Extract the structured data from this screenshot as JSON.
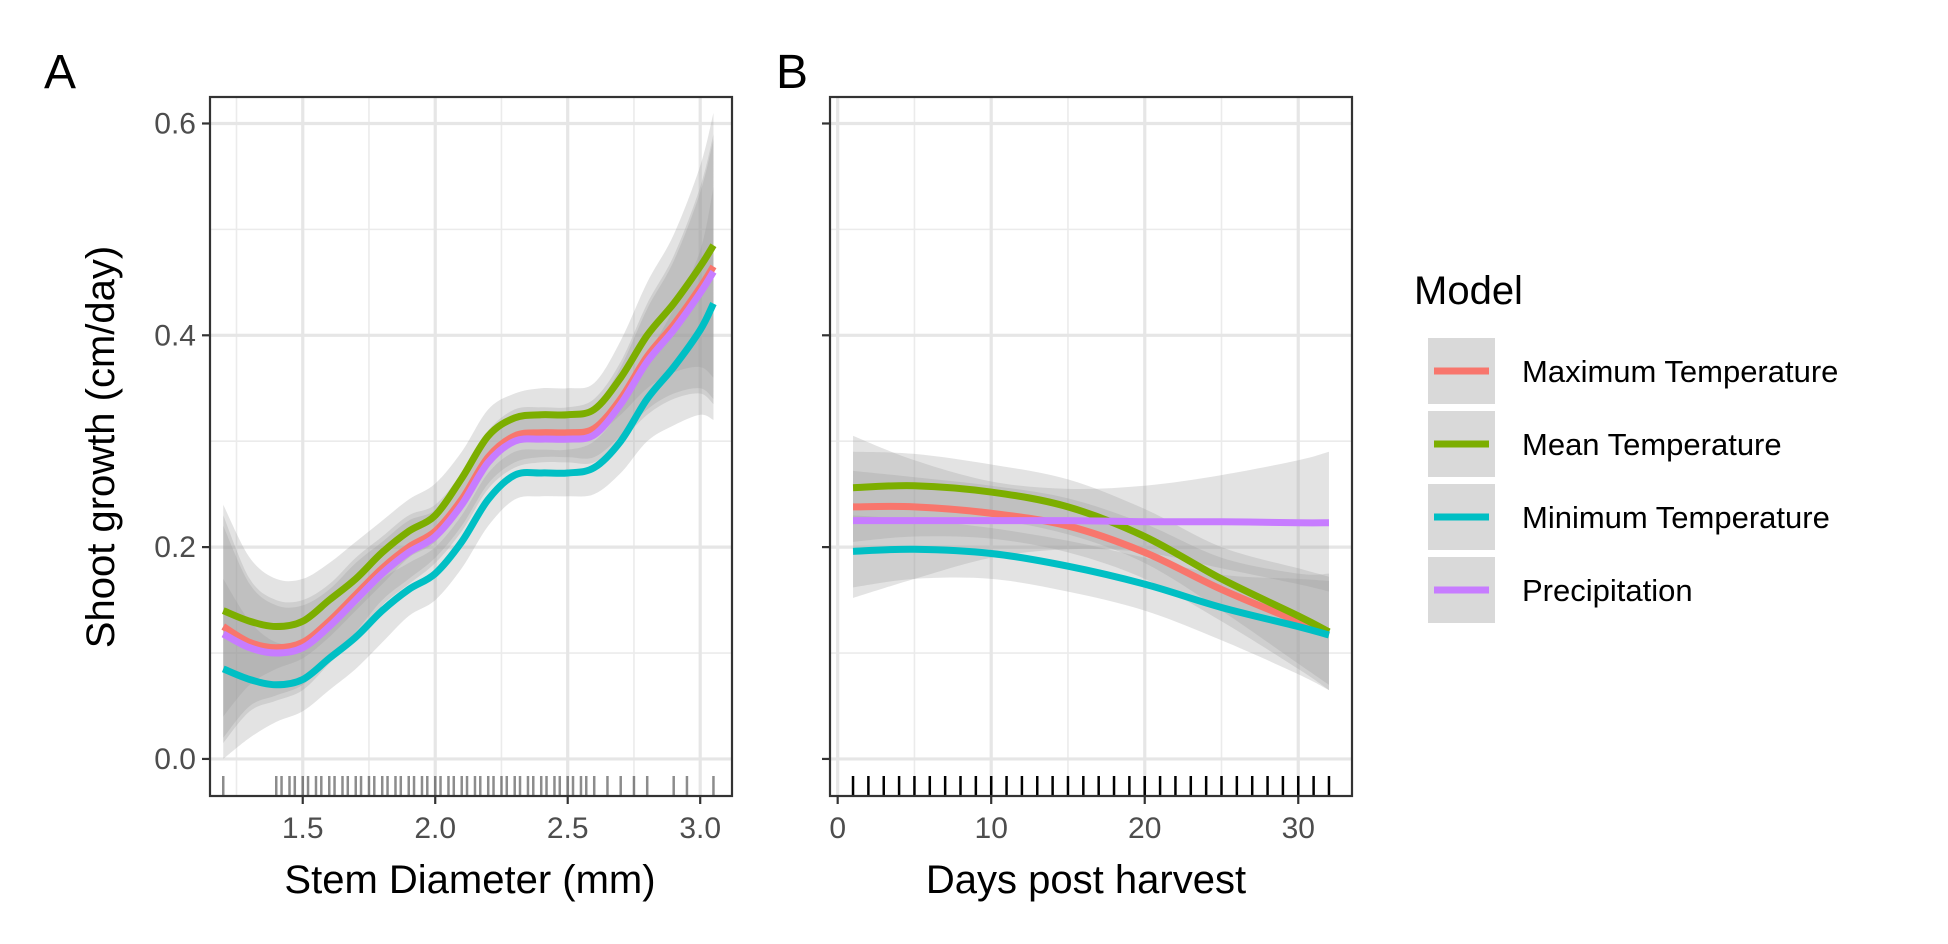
{
  "chart_data": [
    {
      "panel": "A",
      "type": "line",
      "xlabel": "Stem Diameter (mm)",
      "ylabel": "Shoot growth (cm/day)",
      "xlim": [
        1.15,
        3.12
      ],
      "ylim": [
        -0.035,
        0.625
      ],
      "xticks": [
        1.5,
        2.0,
        2.5,
        3.0
      ],
      "xtick_labels": [
        "1.5",
        "2.0",
        "2.5",
        "3.0"
      ],
      "yticks": [
        0.0,
        0.2,
        0.4,
        0.6
      ],
      "ytick_labels": [
        "0.0",
        "0.2",
        "0.4",
        "0.6"
      ],
      "grid": true,
      "x": [
        1.2,
        1.3,
        1.4,
        1.5,
        1.6,
        1.7,
        1.8,
        1.9,
        2.0,
        2.1,
        2.2,
        2.3,
        2.4,
        2.5,
        2.6,
        2.7,
        2.8,
        2.9,
        3.0,
        3.05
      ],
      "series": [
        {
          "name": "Maximum Temperature",
          "color": "#F8766D",
          "values": [
            0.125,
            0.11,
            0.105,
            0.11,
            0.13,
            0.155,
            0.18,
            0.2,
            0.215,
            0.245,
            0.285,
            0.305,
            0.308,
            0.308,
            0.312,
            0.34,
            0.38,
            0.41,
            0.445,
            0.465
          ],
          "lower": [
            0.02,
            0.05,
            0.06,
            0.07,
            0.095,
            0.12,
            0.15,
            0.17,
            0.19,
            0.22,
            0.26,
            0.28,
            0.285,
            0.285,
            0.285,
            0.305,
            0.33,
            0.345,
            0.35,
            0.34
          ],
          "upper": [
            0.23,
            0.17,
            0.15,
            0.15,
            0.165,
            0.19,
            0.21,
            0.23,
            0.24,
            0.27,
            0.31,
            0.33,
            0.332,
            0.332,
            0.34,
            0.375,
            0.43,
            0.475,
            0.54,
            0.59
          ]
        },
        {
          "name": "Mean Temperature",
          "color": "#7CAE00",
          "values": [
            0.14,
            0.13,
            0.125,
            0.13,
            0.15,
            0.17,
            0.195,
            0.215,
            0.23,
            0.265,
            0.305,
            0.322,
            0.325,
            0.325,
            0.33,
            0.36,
            0.4,
            0.43,
            0.465,
            0.485
          ],
          "lower": [
            0.04,
            0.07,
            0.085,
            0.095,
            0.115,
            0.14,
            0.165,
            0.19,
            0.205,
            0.24,
            0.28,
            0.3,
            0.3,
            0.3,
            0.305,
            0.325,
            0.35,
            0.365,
            0.37,
            0.36
          ],
          "upper": [
            0.24,
            0.19,
            0.17,
            0.17,
            0.185,
            0.205,
            0.225,
            0.245,
            0.26,
            0.29,
            0.33,
            0.345,
            0.35,
            0.35,
            0.355,
            0.395,
            0.45,
            0.495,
            0.56,
            0.61
          ]
        },
        {
          "name": "Minimum Temperature",
          "color": "#00BFC4",
          "values": [
            0.085,
            0.075,
            0.07,
            0.075,
            0.095,
            0.115,
            0.14,
            0.16,
            0.175,
            0.205,
            0.245,
            0.268,
            0.27,
            0.27,
            0.275,
            0.3,
            0.34,
            0.37,
            0.405,
            0.43
          ],
          "lower": [
            0.0,
            0.02,
            0.035,
            0.045,
            0.065,
            0.085,
            0.11,
            0.135,
            0.15,
            0.18,
            0.22,
            0.245,
            0.248,
            0.248,
            0.25,
            0.27,
            0.3,
            0.315,
            0.325,
            0.32
          ],
          "upper": [
            0.17,
            0.13,
            0.11,
            0.11,
            0.125,
            0.145,
            0.17,
            0.185,
            0.2,
            0.23,
            0.27,
            0.29,
            0.292,
            0.292,
            0.3,
            0.33,
            0.38,
            0.425,
            0.48,
            0.54
          ]
        },
        {
          "name": "Precipitation",
          "color": "#C77CFF",
          "values": [
            0.118,
            0.105,
            0.1,
            0.105,
            0.125,
            0.15,
            0.175,
            0.195,
            0.21,
            0.24,
            0.28,
            0.3,
            0.302,
            0.302,
            0.306,
            0.335,
            0.375,
            0.405,
            0.44,
            0.46
          ],
          "lower": [
            0.015,
            0.045,
            0.055,
            0.065,
            0.09,
            0.115,
            0.145,
            0.165,
            0.185,
            0.215,
            0.255,
            0.275,
            0.28,
            0.28,
            0.28,
            0.3,
            0.325,
            0.34,
            0.345,
            0.335
          ],
          "upper": [
            0.22,
            0.165,
            0.145,
            0.145,
            0.16,
            0.185,
            0.205,
            0.225,
            0.235,
            0.265,
            0.305,
            0.325,
            0.325,
            0.325,
            0.332,
            0.37,
            0.425,
            0.47,
            0.535,
            0.585
          ]
        }
      ],
      "rug": [
        1.2,
        1.4,
        1.42,
        1.45,
        1.47,
        1.5,
        1.52,
        1.55,
        1.57,
        1.6,
        1.62,
        1.65,
        1.67,
        1.7,
        1.72,
        1.75,
        1.77,
        1.8,
        1.82,
        1.85,
        1.87,
        1.9,
        1.92,
        1.95,
        1.97,
        2.0,
        2.02,
        2.05,
        2.07,
        2.1,
        2.12,
        2.15,
        2.17,
        2.2,
        2.22,
        2.25,
        2.27,
        2.3,
        2.32,
        2.35,
        2.37,
        2.4,
        2.42,
        2.45,
        2.47,
        2.5,
        2.52,
        2.55,
        2.57,
        2.6,
        2.65,
        2.7,
        2.75,
        2.8,
        2.9,
        2.95,
        3.05
      ]
    },
    {
      "panel": "B",
      "type": "line",
      "xlabel": "Days post harvest",
      "ylabel": "",
      "xlim": [
        -0.5,
        33.5
      ],
      "ylim": [
        -0.035,
        0.625
      ],
      "xticks": [
        0,
        10,
        20,
        30
      ],
      "xtick_labels": [
        "0",
        "10",
        "20",
        "30"
      ],
      "yticks": [
        0.0,
        0.2,
        0.4,
        0.6
      ],
      "grid": true,
      "x": [
        1,
        5,
        10,
        15,
        20,
        25,
        30,
        32
      ],
      "series": [
        {
          "name": "Maximum Temperature",
          "color": "#F8766D",
          "values": [
            0.238,
            0.238,
            0.232,
            0.22,
            0.195,
            0.16,
            0.13,
            0.12
          ],
          "lower": [
            0.205,
            0.21,
            0.208,
            0.195,
            0.17,
            0.13,
            0.085,
            0.065
          ],
          "upper": [
            0.272,
            0.266,
            0.258,
            0.246,
            0.222,
            0.19,
            0.175,
            0.175
          ]
        },
        {
          "name": "Mean Temperature",
          "color": "#7CAE00",
          "values": [
            0.256,
            0.258,
            0.252,
            0.238,
            0.21,
            0.17,
            0.135,
            0.12
          ],
          "lower": [
            0.222,
            0.228,
            0.226,
            0.212,
            0.185,
            0.14,
            0.09,
            0.07
          ],
          "upper": [
            0.29,
            0.288,
            0.278,
            0.264,
            0.236,
            0.2,
            0.18,
            0.172
          ]
        },
        {
          "name": "Minimum Temperature",
          "color": "#00BFC4",
          "values": [
            0.196,
            0.198,
            0.194,
            0.182,
            0.165,
            0.143,
            0.125,
            0.117
          ],
          "lower": [
            0.162,
            0.17,
            0.17,
            0.158,
            0.14,
            0.112,
            0.08,
            0.065
          ],
          "upper": [
            0.23,
            0.226,
            0.218,
            0.206,
            0.19,
            0.174,
            0.17,
            0.168
          ]
        },
        {
          "name": "Precipitation",
          "color": "#C77CFF",
          "values": [
            0.225,
            0.225,
            0.225,
            0.225,
            0.224,
            0.224,
            0.223,
            0.223
          ],
          "lower": [
            0.152,
            0.17,
            0.19,
            0.198,
            0.195,
            0.18,
            0.165,
            0.158
          ],
          "upper": [
            0.305,
            0.282,
            0.262,
            0.255,
            0.258,
            0.268,
            0.282,
            0.29
          ]
        }
      ],
      "rug": [
        1,
        2,
        3,
        4,
        5,
        6,
        7,
        8,
        9,
        10,
        11,
        12,
        13,
        14,
        15,
        16,
        17,
        18,
        19,
        20,
        21,
        22,
        23,
        24,
        25,
        26,
        27,
        28,
        29,
        30,
        31,
        32
      ]
    }
  ],
  "legend": {
    "title": "Model",
    "placement": "right",
    "items": [
      {
        "label": "Maximum Temperature",
        "color": "#F8766D"
      },
      {
        "label": "Mean Temperature",
        "color": "#7CAE00"
      },
      {
        "label": "Minimum Temperature",
        "color": "#00BFC4"
      },
      {
        "label": "Precipitation",
        "color": "#C77CFF"
      }
    ]
  },
  "panel_labels": [
    "A",
    "B"
  ]
}
